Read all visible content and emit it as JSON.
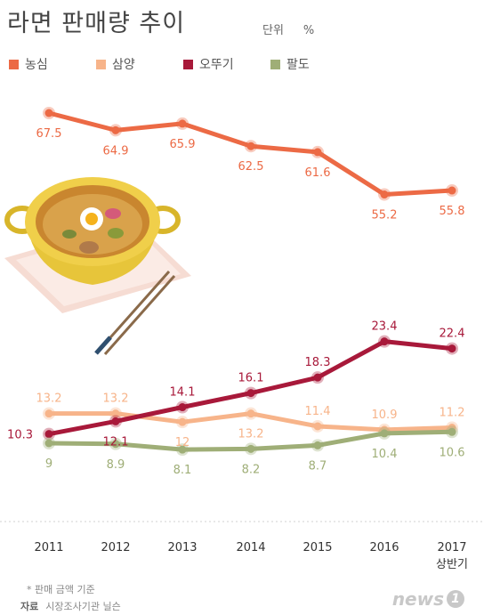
{
  "header": {
    "title": "라면 판매량 추이",
    "unit_label": "단위",
    "unit_value": "%"
  },
  "footer": {
    "footnote": "*  판매 금액 기준",
    "source_label": "자료",
    "source_value": "시장조사기관 닐슨",
    "logo_text": "news",
    "logo_badge": "1"
  },
  "chart_data": {
    "type": "line",
    "title": "라면 판매량 추이",
    "categories": [
      "2011",
      "2012",
      "2013",
      "2014",
      "2015",
      "2016",
      "2017"
    ],
    "category_sublabels": [
      "",
      "",
      "",
      "",
      "",
      "",
      "상반기"
    ],
    "ylabel": "",
    "xlabel": "",
    "unit": "%",
    "grid": false,
    "legend_position": "top",
    "series": [
      {
        "name": "농심",
        "color": "#ec6a45",
        "values": [
          67.5,
          64.9,
          65.9,
          62.5,
          61.6,
          55.2,
          55.8
        ]
      },
      {
        "name": "삼양",
        "color": "#f7b48a",
        "values": [
          13.2,
          13.2,
          12,
          13.2,
          11.4,
          10.9,
          11.2
        ]
      },
      {
        "name": "오뚜기",
        "color": "#a8193a",
        "values": [
          10.3,
          12.1,
          14.1,
          16.1,
          18.3,
          23.4,
          22.4
        ]
      },
      {
        "name": "팔도",
        "color": "#9fae77",
        "values": [
          9,
          8.9,
          8.1,
          8.2,
          8.7,
          10.4,
          10.6
        ]
      }
    ]
  }
}
